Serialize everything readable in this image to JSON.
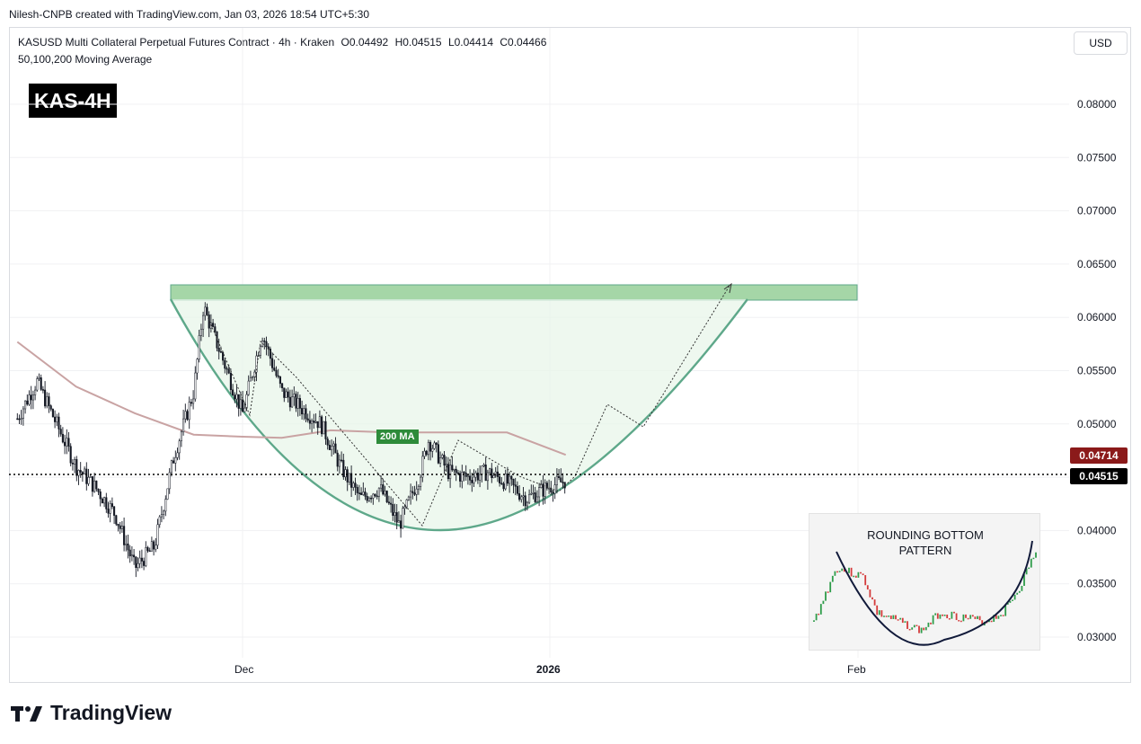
{
  "credit": "Nilesh-CNPB created with TradingView.com, Jan 03, 2026 18:54 UTC+5:30",
  "legend": {
    "symbol": "KASUSD Multi Collateral Perpetual Futures Contract · 4h · Kraken",
    "open": "O0.04492",
    "high": "H0.04515",
    "low": "L0.04414",
    "close": "C0.04466",
    "indicator": "50,100,200 Moving Average"
  },
  "badge": "KAS-4H",
  "currency": "USD",
  "price_axis": [
    "0.08000",
    "0.07500",
    "0.07000",
    "0.06500",
    "0.06000",
    "0.05500",
    "0.05000",
    "0.04500",
    "0.04000",
    "0.03500",
    "0.03000"
  ],
  "price_tags": {
    "ma_value": "0.04714",
    "ma_color": "#8b1a1a",
    "last_price": "0.04515",
    "last_color": "#000000"
  },
  "time_axis": {
    "dec": "Dec",
    "jan": "2026",
    "feb": "Feb"
  },
  "ma_label": "200 MA",
  "inset": {
    "title_line1": "ROUNDING BOTTOM",
    "title_line2": "PATTERN"
  },
  "logo_text": "TradingView",
  "colors": {
    "resistance_zone": "#a5d6a7",
    "bowl_fill": "#e8f5e9",
    "bowl_stroke": "#5ea88a",
    "ma200": "#c9a3a3",
    "candle": "#131722"
  },
  "chart_data": {
    "type": "candlestick",
    "symbol": "KASUSD",
    "timeframe": "4h",
    "ylim": [
      0.0285,
      0.0835
    ],
    "x_labels": [
      "Dec",
      "2026",
      "Feb"
    ],
    "price_path": [
      {
        "x": "Nov 08",
        "y": 0.0505
      },
      {
        "x": "Nov 10",
        "y": 0.054
      },
      {
        "x": "Nov 12",
        "y": 0.05
      },
      {
        "x": "Nov 14",
        "y": 0.046
      },
      {
        "x": "Nov 16",
        "y": 0.044
      },
      {
        "x": "Nov 18",
        "y": 0.0415
      },
      {
        "x": "Nov 20",
        "y": 0.0365
      },
      {
        "x": "Nov 22",
        "y": 0.0385
      },
      {
        "x": "Nov 24",
        "y": 0.047
      },
      {
        "x": "Nov 26",
        "y": 0.053
      },
      {
        "x": "Nov 27",
        "y": 0.061
      },
      {
        "x": "Nov 29",
        "y": 0.056
      },
      {
        "x": "Dec 01",
        "y": 0.051
      },
      {
        "x": "Dec 03",
        "y": 0.0585
      },
      {
        "x": "Dec 05",
        "y": 0.053
      },
      {
        "x": "Dec 07",
        "y": 0.0515
      },
      {
        "x": "Dec 09",
        "y": 0.05
      },
      {
        "x": "Dec 11",
        "y": 0.046
      },
      {
        "x": "Dec 13",
        "y": 0.043
      },
      {
        "x": "Dec 15",
        "y": 0.044
      },
      {
        "x": "Dec 17",
        "y": 0.0405
      },
      {
        "x": "Dec 19",
        "y": 0.045
      },
      {
        "x": "Dec 20",
        "y": 0.0485
      },
      {
        "x": "Dec 22",
        "y": 0.0455
      },
      {
        "x": "Dec 24",
        "y": 0.045
      },
      {
        "x": "Dec 26",
        "y": 0.0455
      },
      {
        "x": "Dec 28",
        "y": 0.0445
      },
      {
        "x": "Dec 30",
        "y": 0.043
      },
      {
        "x": "Jan 01",
        "y": 0.044
      },
      {
        "x": "Jan 03",
        "y": 0.0447
      }
    ],
    "ma200": [
      {
        "x": "Nov 08",
        "y": 0.0577
      },
      {
        "x": "Nov 14",
        "y": 0.0535
      },
      {
        "x": "Nov 20",
        "y": 0.051
      },
      {
        "x": "Nov 26",
        "y": 0.049
      },
      {
        "x": "Dec 01",
        "y": 0.0488
      },
      {
        "x": "Dec 05",
        "y": 0.0487
      },
      {
        "x": "Dec 10",
        "y": 0.0494
      },
      {
        "x": "Dec 16",
        "y": 0.0492
      },
      {
        "x": "Dec 22",
        "y": 0.0492
      },
      {
        "x": "Dec 28",
        "y": 0.0492
      },
      {
        "x": "Jan 03",
        "y": 0.0471
      }
    ],
    "resistance_zone": [
      0.0617,
      0.063
    ],
    "last_price": 0.04515,
    "ma200_last": 0.04714
  }
}
